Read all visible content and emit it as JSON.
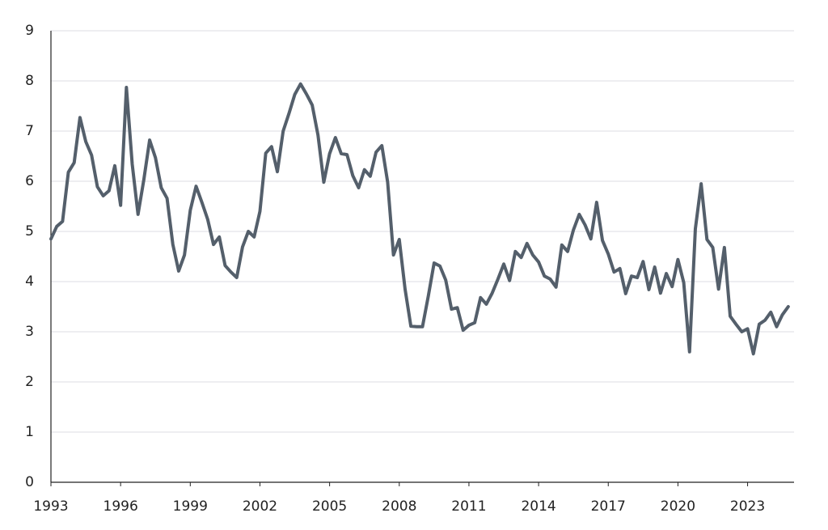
{
  "chart_data": {
    "type": "line",
    "x": [
      1993,
      1993.25,
      1993.5,
      1993.75,
      1994,
      1994.25,
      1994.5,
      1994.75,
      1995,
      1995.25,
      1995.5,
      1995.75,
      1996,
      1996.25,
      1996.5,
      1996.75,
      1997,
      1997.25,
      1997.5,
      1997.75,
      1998,
      1998.25,
      1998.5,
      1998.75,
      1999,
      1999.25,
      1999.5,
      1999.75,
      2000,
      2000.25,
      2000.5,
      2000.75,
      2001,
      2001.25,
      2001.5,
      2001.75,
      2002,
      2002.25,
      2002.5,
      2002.75,
      2003,
      2003.25,
      2003.5,
      2003.75,
      2004,
      2004.25,
      2004.5,
      2004.75,
      2005,
      2005.25,
      2005.5,
      2005.75,
      2006,
      2006.25,
      2006.5,
      2006.75,
      2007,
      2007.25,
      2007.5,
      2007.75,
      2008,
      2008.25,
      2008.5,
      2008.75,
      2009,
      2009.25,
      2009.5,
      2009.75,
      2010,
      2010.25,
      2010.5,
      2010.75,
      2011,
      2011.25,
      2011.5,
      2011.75,
      2012,
      2012.25,
      2012.5,
      2012.75,
      2013,
      2013.25,
      2013.5,
      2013.75,
      2014,
      2014.25,
      2014.5,
      2014.75,
      2015,
      2015.25,
      2015.5,
      2015.75,
      2016,
      2016.25,
      2016.5,
      2016.75,
      2017,
      2017.25,
      2017.5,
      2017.75,
      2018,
      2018.25,
      2018.5,
      2018.75,
      2019,
      2019.25,
      2019.5,
      2019.75,
      2020,
      2020.25,
      2020.5,
      2020.75,
      2021,
      2021.25,
      2021.5,
      2021.75,
      2022,
      2022.25,
      2022.5,
      2022.75,
      2023,
      2023.25,
      2023.5,
      2023.75,
      2024,
      2024.25,
      2024.5,
      2024.75
    ],
    "series": [
      {
        "color": "#545f6b",
        "values": [
          4.85,
          5.1,
          5.2,
          6.18,
          6.37,
          7.27,
          6.79,
          6.52,
          5.89,
          5.71,
          5.81,
          6.31,
          5.52,
          7.87,
          6.34,
          5.34,
          6.03,
          6.82,
          6.47,
          5.87,
          5.66,
          4.74,
          4.21,
          4.53,
          5.42,
          5.9,
          5.58,
          5.24,
          4.74,
          4.89,
          4.32,
          4.19,
          4.08,
          4.69,
          5.0,
          4.89,
          5.4,
          6.56,
          6.69,
          6.19,
          7.0,
          7.35,
          7.73,
          7.94,
          7.74,
          7.52,
          6.92,
          5.98,
          6.55,
          6.87,
          6.55,
          6.53,
          6.11,
          5.87,
          6.23,
          6.1,
          6.58,
          6.71,
          5.98,
          4.53,
          4.84,
          3.85,
          3.11,
          3.1,
          3.1,
          3.71,
          4.37,
          4.31,
          4.03,
          3.45,
          3.48,
          3.03,
          3.13,
          3.18,
          3.68,
          3.55,
          3.77,
          4.05,
          4.35,
          4.02,
          4.6,
          4.48,
          4.76,
          4.53,
          4.39,
          4.11,
          4.05,
          3.89,
          4.73,
          4.6,
          5.03,
          5.34,
          5.13,
          4.85,
          5.58,
          4.82,
          4.55,
          4.19,
          4.26,
          3.76,
          4.11,
          4.08,
          4.4,
          3.84,
          4.29,
          3.77,
          4.16,
          3.9,
          4.44,
          3.98,
          2.6,
          5.05,
          5.95,
          4.84,
          4.68,
          3.85,
          4.68,
          3.31,
          3.15,
          3.0,
          3.06,
          2.56,
          3.15,
          3.23,
          3.39,
          3.1,
          3.34,
          3.5
        ]
      }
    ],
    "xlim": [
      1993,
      2025
    ],
    "xticks": [
      1993,
      1996,
      1999,
      2002,
      2005,
      2008,
      2011,
      2014,
      2017,
      2020,
      2023
    ],
    "ylim": [
      0,
      9
    ],
    "yticks": [
      0,
      1,
      2,
      3,
      4,
      5,
      6,
      7,
      8,
      9
    ],
    "grid": true
  }
}
